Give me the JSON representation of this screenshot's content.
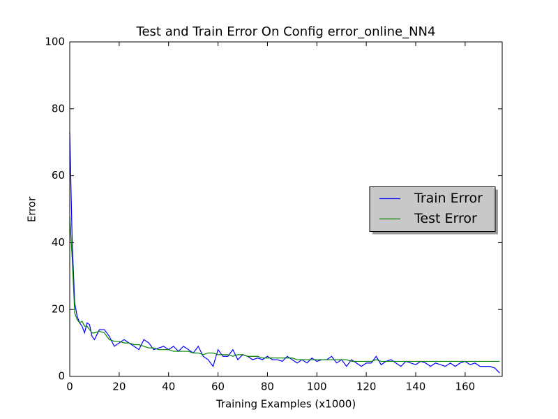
{
  "chart_data": {
    "type": "line",
    "title": "Test and Train Error On Config error_online_NN4",
    "x_label": "Training Examples (x1000)",
    "y_label": "Error",
    "xlim": [
      0,
      175
    ],
    "ylim": [
      0,
      100
    ],
    "xticks": [
      0,
      20,
      40,
      60,
      80,
      100,
      120,
      140,
      160
    ],
    "yticks": [
      0,
      20,
      40,
      60,
      80,
      100
    ],
    "legend": "center right",
    "x": [
      0,
      1,
      2,
      3,
      4,
      5,
      6,
      7,
      8,
      9,
      10,
      12,
      14,
      16,
      18,
      20,
      22,
      24,
      26,
      28,
      30,
      32,
      34,
      36,
      38,
      40,
      42,
      44,
      46,
      48,
      50,
      52,
      54,
      56,
      58,
      60,
      62,
      64,
      66,
      68,
      70,
      72,
      74,
      76,
      78,
      80,
      82,
      84,
      86,
      88,
      90,
      92,
      94,
      96,
      98,
      100,
      102,
      104,
      106,
      108,
      110,
      112,
      114,
      116,
      118,
      120,
      122,
      124,
      126,
      128,
      130,
      132,
      134,
      136,
      138,
      140,
      142,
      144,
      146,
      148,
      150,
      152,
      154,
      156,
      158,
      160,
      162,
      164,
      166,
      168,
      170,
      172,
      174
    ],
    "series": [
      {
        "name": "Train Error",
        "color": "#0000ff",
        "values": [
          73,
          40,
          22,
          18,
          16,
          15,
          13,
          16,
          15.5,
          12,
          11,
          14,
          14,
          12,
          9,
          10,
          11,
          10,
          9,
          8,
          11,
          10,
          8,
          8.5,
          9,
          8,
          9,
          7.5,
          9,
          8,
          7,
          9,
          6,
          5,
          3,
          8,
          6,
          6,
          8,
          5,
          6.5,
          6,
          5,
          5.5,
          5,
          6,
          5,
          5,
          4.5,
          6,
          5,
          4,
          5,
          4,
          5.5,
          4.5,
          5,
          5,
          6,
          4,
          5,
          3,
          5,
          4,
          3,
          4,
          4,
          6,
          3.5,
          4.5,
          5,
          4,
          3,
          4.5,
          4,
          3.5,
          4.5,
          4,
          3,
          4,
          3.5,
          3,
          4,
          3,
          4,
          4.5,
          3.5,
          4,
          3,
          3,
          3,
          2.5,
          1
        ]
      },
      {
        "name": "Test Error",
        "color": "#008000",
        "values": [
          48,
          35,
          19,
          17,
          16,
          16.5,
          15,
          15,
          14,
          13,
          13,
          13.5,
          13,
          11,
          10.5,
          10.5,
          10,
          10,
          9.5,
          9.5,
          9,
          8.5,
          8.5,
          8,
          8,
          8,
          7.5,
          7.5,
          7.5,
          7.5,
          7,
          7,
          6.5,
          7,
          7,
          6.5,
          6.5,
          6.5,
          6,
          6.5,
          6.5,
          6,
          6,
          6,
          5.5,
          5.5,
          5.5,
          5.5,
          5.5,
          5.5,
          5.5,
          5,
          5,
          5,
          5,
          5,
          5,
          5,
          5,
          5,
          5,
          5,
          4.5,
          4.5,
          4.5,
          4.5,
          4.5,
          5,
          4.5,
          4.5,
          4.5,
          4.5,
          4.5,
          4.5,
          4.5,
          4.5,
          4.5,
          4.5,
          4.5,
          4.5,
          4.5,
          4.5,
          4.5,
          4.5,
          4.5,
          4.5,
          4.5,
          4.5,
          4.5,
          4.5,
          4.5,
          4.5,
          4.5
        ]
      }
    ]
  }
}
